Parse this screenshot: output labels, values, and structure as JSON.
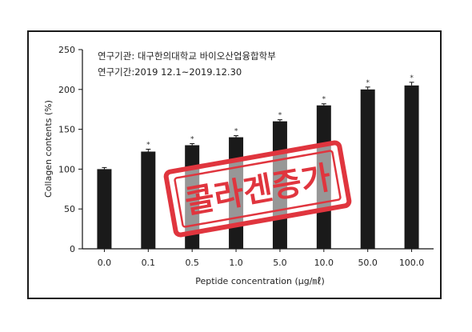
{
  "chart_data": {
    "type": "bar",
    "categories": [
      "0.0",
      "0.1",
      "0.5",
      "1.0",
      "5.0",
      "10.0",
      "50.0",
      "100.0"
    ],
    "values": [
      100,
      122,
      130,
      140,
      160,
      180,
      200,
      205
    ],
    "errors": [
      2,
      3,
      2,
      2,
      2,
      2,
      3,
      4
    ],
    "significance": [
      "",
      "*",
      "*",
      "*",
      "*",
      "*",
      "*",
      "*"
    ],
    "xlabel": "Peptide concentration (μg/㎖)",
    "ylabel": "Collagen contents (%)",
    "ylim": [
      0,
      250
    ],
    "yticks": [
      "0",
      "50",
      "100",
      "150",
      "200",
      "250"
    ],
    "bar_color": "#1a1a1a",
    "grid": false,
    "notes": [
      "연구기관: 대구한의대학교 바이오산업융합학부",
      "연구기간:2019 12.1~2019.12.30"
    ]
  },
  "stamp": {
    "text": "콜라겐증가",
    "color": "#e0353e"
  }
}
